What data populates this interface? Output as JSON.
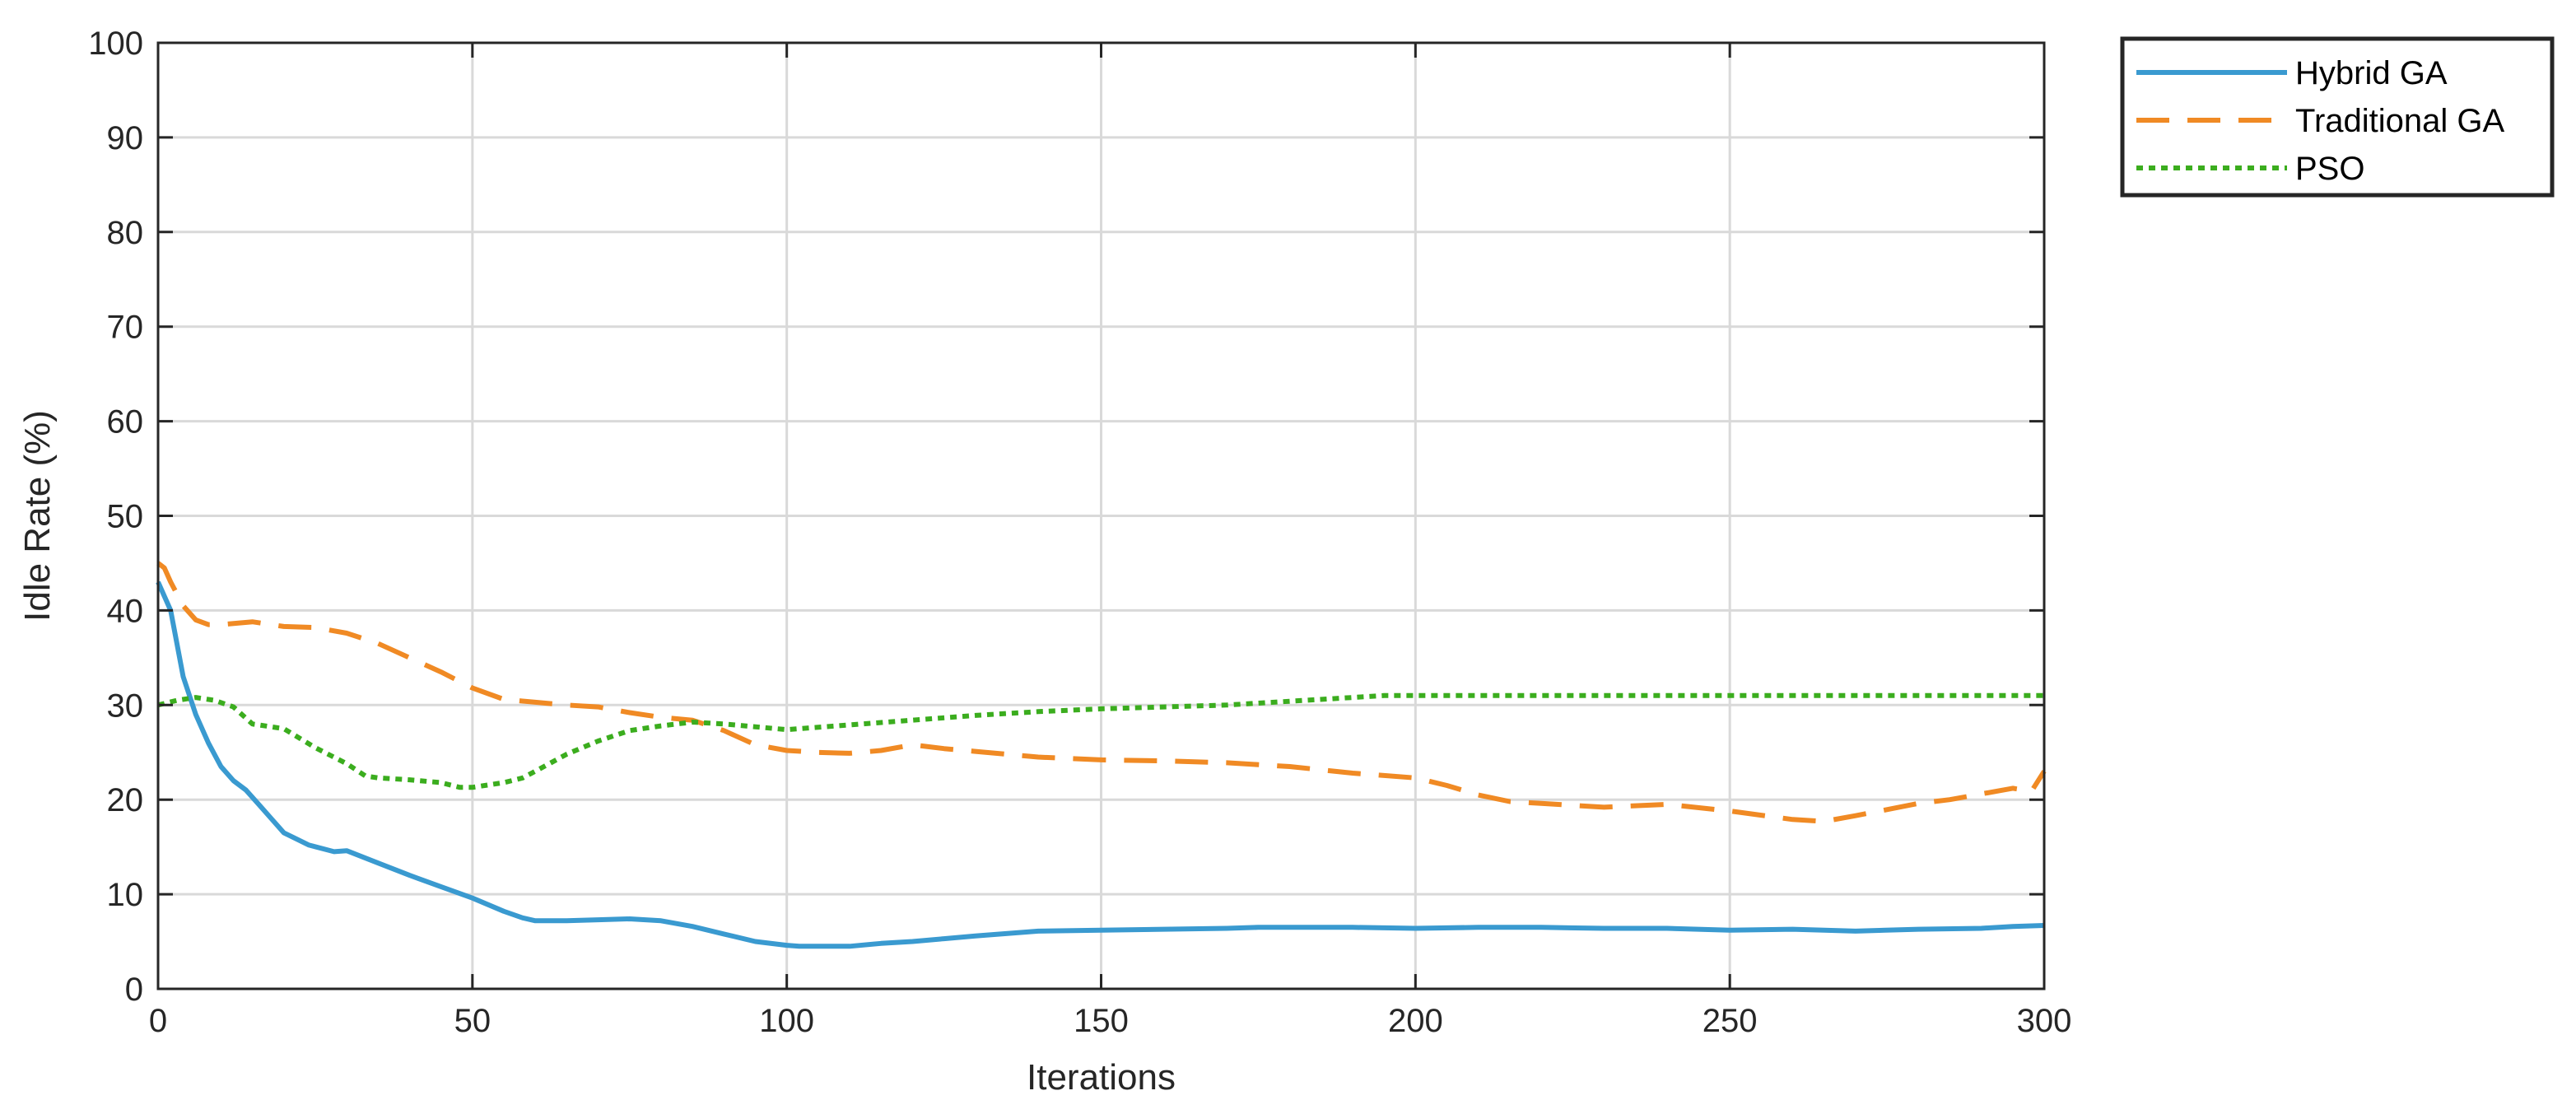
{
  "chart_data": {
    "type": "line",
    "xlabel": "Iterations",
    "ylabel": "Idle Rate (%)",
    "xlim": [
      0,
      300
    ],
    "ylim": [
      0,
      100
    ],
    "x_ticks": [
      0,
      50,
      100,
      150,
      200,
      250,
      300
    ],
    "y_ticks": [
      0,
      10,
      20,
      30,
      40,
      50,
      60,
      70,
      80,
      90,
      100
    ],
    "grid": true,
    "legend_position": "outside-top-right",
    "series": [
      {
        "name": "Hybrid GA",
        "color": "#3a9ad0",
        "style": "solid",
        "x": [
          0,
          2,
          4,
          6,
          8,
          10,
          12,
          14,
          16,
          18,
          20,
          24,
          28,
          30,
          35,
          40,
          45,
          50,
          55,
          58,
          60,
          65,
          70,
          75,
          80,
          85,
          90,
          95,
          100,
          102,
          105,
          110,
          115,
          120,
          125,
          130,
          140,
          150,
          160,
          170,
          175,
          180,
          190,
          200,
          210,
          220,
          230,
          240,
          250,
          260,
          265,
          270,
          280,
          290,
          295,
          300
        ],
        "y": [
          43,
          40,
          33,
          29,
          26,
          23.5,
          22,
          21,
          19.5,
          18,
          16.5,
          15.2,
          14.5,
          14.6,
          13.3,
          12,
          10.8,
          9.6,
          8.2,
          7.5,
          7.2,
          7.2,
          7.3,
          7.4,
          7.2,
          6.6,
          5.8,
          5.0,
          4.6,
          4.5,
          4.5,
          4.5,
          4.8,
          5.0,
          5.3,
          5.6,
          6.1,
          6.2,
          6.3,
          6.4,
          6.5,
          6.5,
          6.5,
          6.4,
          6.5,
          6.5,
          6.4,
          6.4,
          6.2,
          6.3,
          6.2,
          6.1,
          6.3,
          6.4,
          6.6,
          6.7
        ]
      },
      {
        "name": "Traditional GA",
        "color": "#f08a24",
        "style": "dashed",
        "x": [
          0,
          1,
          2,
          4,
          6,
          8,
          10,
          15,
          20,
          25,
          30,
          35,
          40,
          45,
          50,
          55,
          60,
          65,
          70,
          75,
          80,
          85,
          90,
          95,
          100,
          105,
          110,
          115,
          120,
          125,
          130,
          140,
          150,
          160,
          170,
          180,
          190,
          200,
          205,
          210,
          215,
          220,
          230,
          240,
          250,
          260,
          265,
          270,
          280,
          285,
          290,
          295,
          298,
          300
        ],
        "y": [
          45,
          44.5,
          43,
          40.5,
          39,
          38.5,
          38.5,
          38.8,
          38.3,
          38.2,
          37.6,
          36.5,
          35,
          33.5,
          31.8,
          30.6,
          30.3,
          30,
          29.8,
          29.2,
          28.7,
          28.4,
          27.3,
          25.8,
          25.2,
          25,
          24.9,
          25.2,
          25.8,
          25.4,
          25.1,
          24.5,
          24.2,
          24.1,
          23.9,
          23.5,
          22.8,
          22.3,
          21.5,
          20.5,
          19.8,
          19.6,
          19.2,
          19.5,
          18.8,
          17.9,
          17.7,
          18.3,
          19.6,
          20,
          20.6,
          21.2,
          20.9,
          23
        ]
      },
      {
        "name": "PSO",
        "color": "#3bad1e",
        "style": "dotted",
        "x": [
          0,
          3,
          6,
          9,
          12,
          15,
          20,
          25,
          30,
          33,
          35,
          40,
          45,
          48,
          50,
          55,
          58,
          60,
          65,
          70,
          75,
          80,
          85,
          90,
          95,
          100,
          102,
          110,
          120,
          130,
          140,
          150,
          160,
          170,
          180,
          190,
          195,
          200,
          250,
          300
        ],
        "y": [
          30,
          30.5,
          30.8,
          30.5,
          29.8,
          28,
          27.5,
          25.5,
          23.8,
          22.5,
          22.3,
          22.1,
          21.8,
          21.3,
          21.3,
          21.8,
          22.3,
          23,
          24.8,
          26.2,
          27.3,
          27.8,
          28.2,
          28,
          27.7,
          27.4,
          27.5,
          27.9,
          28.4,
          28.9,
          29.3,
          29.6,
          29.8,
          30,
          30.4,
          30.8,
          31,
          31,
          31,
          31
        ]
      }
    ]
  }
}
